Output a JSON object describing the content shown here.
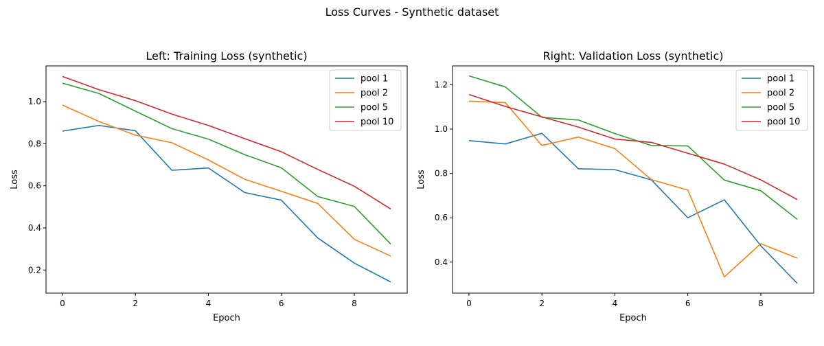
{
  "figure": {
    "suptitle": "Loss Curves - Synthetic dataset"
  },
  "chart_data": [
    {
      "type": "line",
      "title": "Left: Training Loss (synthetic)",
      "xlabel": "Epoch",
      "ylabel": "Loss",
      "xlim": [
        -0.45,
        9.45
      ],
      "ylim": [
        0.09,
        1.17
      ],
      "xticks": [
        0,
        2,
        4,
        6,
        8
      ],
      "yticks": [
        0.2,
        0.4,
        0.6,
        0.8,
        1.0
      ],
      "ytick_labels": [
        "0.2",
        "0.4",
        "0.6",
        "0.8",
        "1.0"
      ],
      "grid": false,
      "legend_position": "upper right",
      "x": [
        0,
        1,
        2,
        3,
        4,
        5,
        6,
        7,
        8,
        9
      ],
      "series": [
        {
          "name": "pool 1",
          "color": "#1f77b4",
          "values": [
            0.86,
            0.887,
            0.862,
            0.674,
            0.685,
            0.568,
            0.532,
            0.352,
            0.233,
            0.143
          ]
        },
        {
          "name": "pool 2",
          "color": "#ff7f0e",
          "values": [
            0.984,
            0.906,
            0.841,
            0.805,
            0.723,
            0.631,
            0.574,
            0.516,
            0.346,
            0.266
          ]
        },
        {
          "name": "pool 5",
          "color": "#2ca02c",
          "values": [
            1.088,
            1.039,
            0.955,
            0.872,
            0.822,
            0.748,
            0.686,
            0.549,
            0.502,
            0.323
          ]
        },
        {
          "name": "pool 10",
          "color": "#d62728",
          "values": [
            1.12,
            1.057,
            1.005,
            0.941,
            0.887,
            0.824,
            0.762,
            0.678,
            0.598,
            0.49
          ]
        }
      ]
    },
    {
      "type": "line",
      "title": "Right: Validation Loss (synthetic)",
      "xlabel": "Epoch",
      "ylabel": "Loss",
      "xlim": [
        -0.45,
        9.45
      ],
      "ylim": [
        0.26,
        1.285
      ],
      "xticks": [
        0,
        2,
        4,
        6,
        8
      ],
      "yticks": [
        0.4,
        0.6,
        0.8,
        1.0,
        1.2
      ],
      "ytick_labels": [
        "0.4",
        "0.6",
        "0.8",
        "1.0",
        "1.2"
      ],
      "grid": false,
      "legend_position": "upper right",
      "x": [
        0,
        1,
        2,
        3,
        4,
        5,
        6,
        7,
        8,
        9
      ],
      "series": [
        {
          "name": "pool 1",
          "color": "#1f77b4",
          "values": [
            0.948,
            0.933,
            0.981,
            0.821,
            0.817,
            0.771,
            0.6,
            0.681,
            0.474,
            0.304
          ]
        },
        {
          "name": "pool 2",
          "color": "#ff7f0e",
          "values": [
            1.126,
            1.119,
            0.926,
            0.964,
            0.912,
            0.772,
            0.725,
            0.333,
            0.483,
            0.418
          ]
        },
        {
          "name": "pool 5",
          "color": "#2ca02c",
          "values": [
            1.24,
            1.19,
            1.053,
            1.041,
            0.98,
            0.926,
            0.924,
            0.77,
            0.722,
            0.593
          ]
        },
        {
          "name": "pool 10",
          "color": "#d62728",
          "values": [
            1.156,
            1.102,
            1.055,
            1.009,
            0.955,
            0.94,
            0.891,
            0.842,
            0.771,
            0.682
          ]
        }
      ]
    }
  ]
}
